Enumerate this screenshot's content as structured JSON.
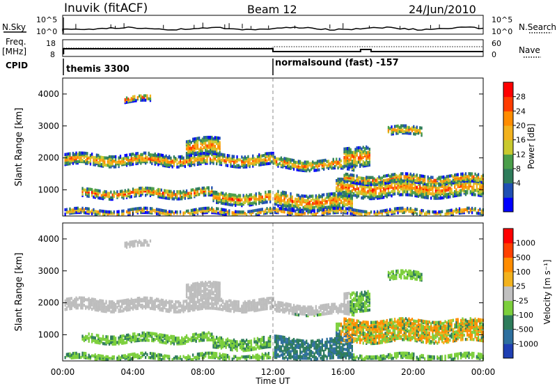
{
  "header": {
    "station": "Inuvik (fitACF)",
    "beam": "Beam 12",
    "date": "24/Jun/2010"
  },
  "left_labels": {
    "nsky": "N.Sky",
    "freq_top": "Freq.",
    "freq_unit": "[MHz]",
    "cpid": "CPID"
  },
  "right_labels": {
    "nsearch": "N.Search",
    "nave": "Nave"
  },
  "top_panel": {
    "nsky_ticks": [
      "10^5",
      "10^0"
    ],
    "nsearch_ticks": [
      "10^5",
      "10^0"
    ],
    "freq_ticks": [
      "18",
      "8"
    ],
    "nave_ticks": [
      "60",
      "0"
    ]
  },
  "cpid": {
    "programs": [
      {
        "label": "themis 3300",
        "start_hour": 0,
        "end_hour": 12
      },
      {
        "label": "normalsound (fast) -157",
        "start_hour": 12,
        "end_hour": 24
      }
    ]
  },
  "chart_data": [
    {
      "type": "heatmap",
      "parameter": "Power",
      "ylabel": "Slant Range [km]",
      "xlabel": "Time UT",
      "ylim": [
        180,
        4500
      ],
      "xlim_hours": [
        0,
        24
      ],
      "y_ticks": [
        1000,
        2000,
        3000,
        4000
      ],
      "colorbar": {
        "label": "Power [dB]",
        "ticks": [
          "28",
          "24",
          "20",
          "16",
          "12",
          "8",
          "4"
        ],
        "colors": [
          "#0000ff",
          "#1f4fb3",
          "#2e7c5b",
          "#4a9e4a",
          "#c9c92e",
          "#f2b21e",
          "#ff8c00",
          "#ff3c00",
          "#ff0000"
        ]
      }
    },
    {
      "type": "heatmap",
      "parameter": "Velocity",
      "ylabel": "Slant Range [km]",
      "xlabel": "Time UT",
      "ylim": [
        180,
        4500
      ],
      "xlim_hours": [
        0,
        24
      ],
      "y_ticks": [
        1000,
        2000,
        3000,
        4000
      ],
      "colorbar": {
        "label": "Velocity [m s⁻¹]",
        "ticks": [
          "1000",
          "500",
          "100",
          "25",
          "-25",
          "-100",
          "-500",
          "-1000"
        ],
        "colors": [
          "#1f3fb3",
          "#2e6f9e",
          "#2e7c5b",
          "#7ccf3c",
          "#c0c0c0",
          "#f2b21e",
          "#ff8c00",
          "#ff4000",
          "#ff0000"
        ]
      },
      "ground_scatter_color": "#bdbdbd"
    }
  ],
  "x_ticks": [
    "00:00",
    "04:00",
    "08:00",
    "12:00",
    "16:00",
    "20:00",
    "00:00"
  ],
  "time_label": "Time UT"
}
